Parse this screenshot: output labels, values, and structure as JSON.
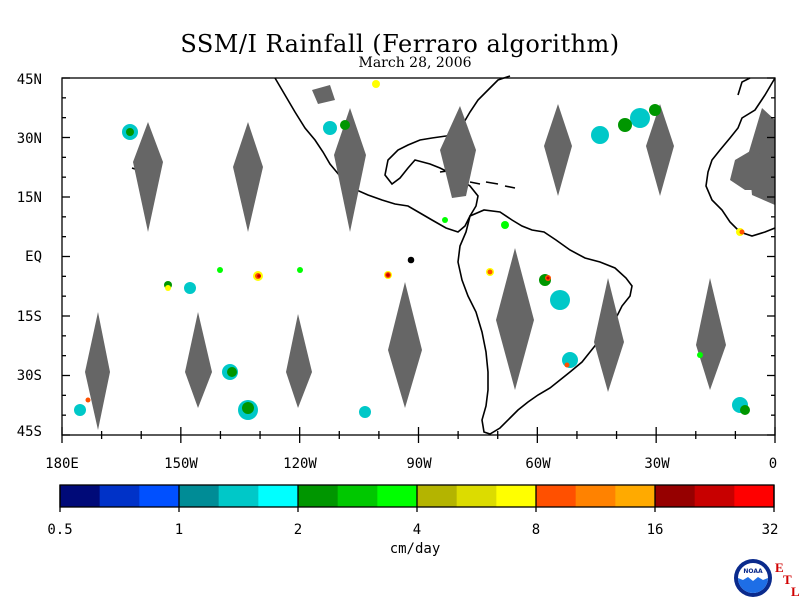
{
  "title": "SSM/I Rainfall (Ferraro algorithm)",
  "date": "March 28, 2006",
  "lat_labels": [
    "45N",
    "30N",
    "15N",
    "EQ",
    "15S",
    "30S",
    "45S"
  ],
  "lon_labels": [
    "180E",
    "150W",
    "120W",
    "90W",
    "60W",
    "30W",
    "0"
  ],
  "colorbar": {
    "colors": [
      "#000a78",
      "#0032c8",
      "#0050ff",
      "#008c96",
      "#00c8c8",
      "#00ffff",
      "#009600",
      "#00c800",
      "#00ff00",
      "#b4b400",
      "#dcdc00",
      "#ffff00",
      "#ff5000",
      "#ff8200",
      "#ffaa00",
      "#960000",
      "#c80000",
      "#ff0000"
    ],
    "labels": [
      "0.5",
      "1",
      "2",
      "4",
      "8",
      "16",
      "32"
    ],
    "units": "cm/day"
  },
  "logo": {
    "name": "NOAA",
    "etl": [
      "E",
      "T",
      "L"
    ]
  }
}
